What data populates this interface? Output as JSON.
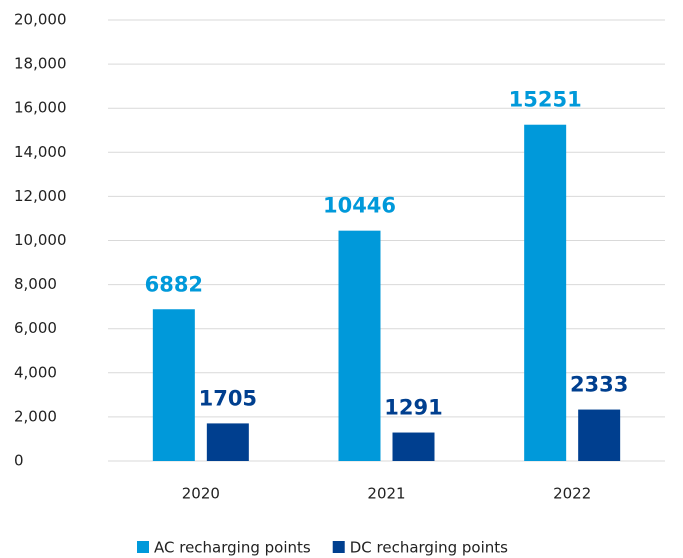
{
  "chart_data": {
    "type": "bar",
    "categories": [
      "2020",
      "2021",
      "2022"
    ],
    "series": [
      {
        "name": "AC recharging points",
        "color": "#0099da",
        "values": [
          6882,
          10446,
          15251
        ]
      },
      {
        "name": "DC recharging points",
        "color": "#003f8f",
        "values": [
          1705,
          1291,
          2333
        ]
      }
    ],
    "ylim": [
      0,
      20000
    ],
    "yticks": [
      0,
      {
        "value": 2000,
        "label": "2,000"
      },
      {
        "value": 4000,
        "label": "4,000"
      },
      {
        "value": 6000,
        "label": "6,000"
      },
      {
        "value": 8000,
        "label": "8,000"
      },
      {
        "value": 10000,
        "label": "10,000"
      },
      {
        "value": 12000,
        "label": "12,000"
      },
      {
        "value": 14000,
        "label": "14,000"
      },
      {
        "value": 16000,
        "label": "16,000"
      },
      {
        "value": 18000,
        "label": "18,000"
      },
      {
        "value": 20000,
        "label": "20,000"
      }
    ],
    "grid": true,
    "legend": "bottom"
  }
}
